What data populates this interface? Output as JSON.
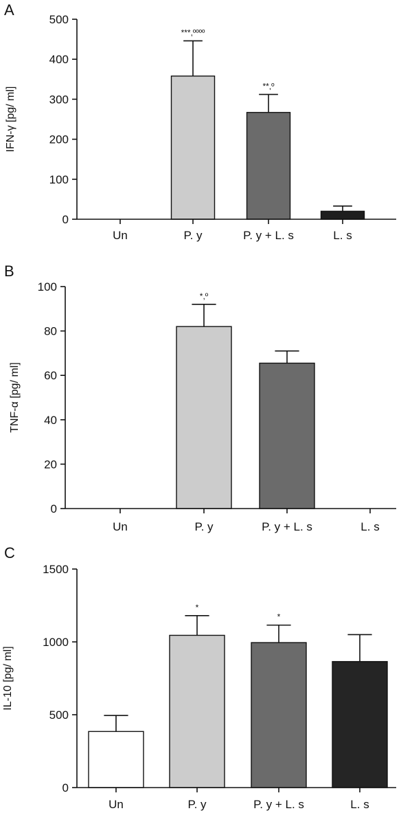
{
  "chart_data": [
    {
      "panel": "A",
      "type": "bar",
      "ylabel": "IFN-γ [pg/ ml]",
      "categories": [
        "Un",
        "P. y",
        "P. y + L. s",
        "L. s"
      ],
      "values": [
        0,
        358,
        267,
        20
      ],
      "errors": [
        0,
        88,
        45,
        13
      ],
      "colors": [
        "#ffffff",
        "#cccccc",
        "#6b6b6b",
        "#1e1e1e"
      ],
      "annotations": [
        "",
        "***,ºººº",
        "**,º",
        ""
      ],
      "ylim": [
        0,
        500
      ],
      "yticks": [
        0,
        100,
        200,
        300,
        400,
        500
      ]
    },
    {
      "panel": "B",
      "type": "bar",
      "ylabel": "TNF-α [pg/ ml]",
      "categories": [
        "Un",
        "P. y",
        "P. y + L. s",
        "L. s"
      ],
      "values": [
        0,
        82,
        65.5,
        0
      ],
      "errors": [
        0,
        10,
        5.5,
        0
      ],
      "colors": [
        "#ffffff",
        "#cccccc",
        "#6b6b6b",
        "#1e1e1e"
      ],
      "annotations": [
        "",
        "*,º",
        "",
        ""
      ],
      "ylim": [
        0,
        100
      ],
      "yticks": [
        0,
        20,
        40,
        60,
        80,
        100
      ]
    },
    {
      "panel": "C",
      "type": "bar",
      "ylabel": "IL-10 [pg/ ml]",
      "categories": [
        "Un",
        "P. y",
        "P. y + L. s",
        "L. s"
      ],
      "values": [
        385,
        1045,
        995,
        865
      ],
      "errors": [
        110,
        135,
        120,
        185
      ],
      "colors": [
        "#ffffff",
        "#cccccc",
        "#6b6b6b",
        "#252525"
      ],
      "annotations": [
        "",
        "*",
        "*",
        ""
      ],
      "ylim": [
        0,
        1500
      ],
      "yticks": [
        0,
        500,
        1000,
        1500
      ]
    }
  ]
}
